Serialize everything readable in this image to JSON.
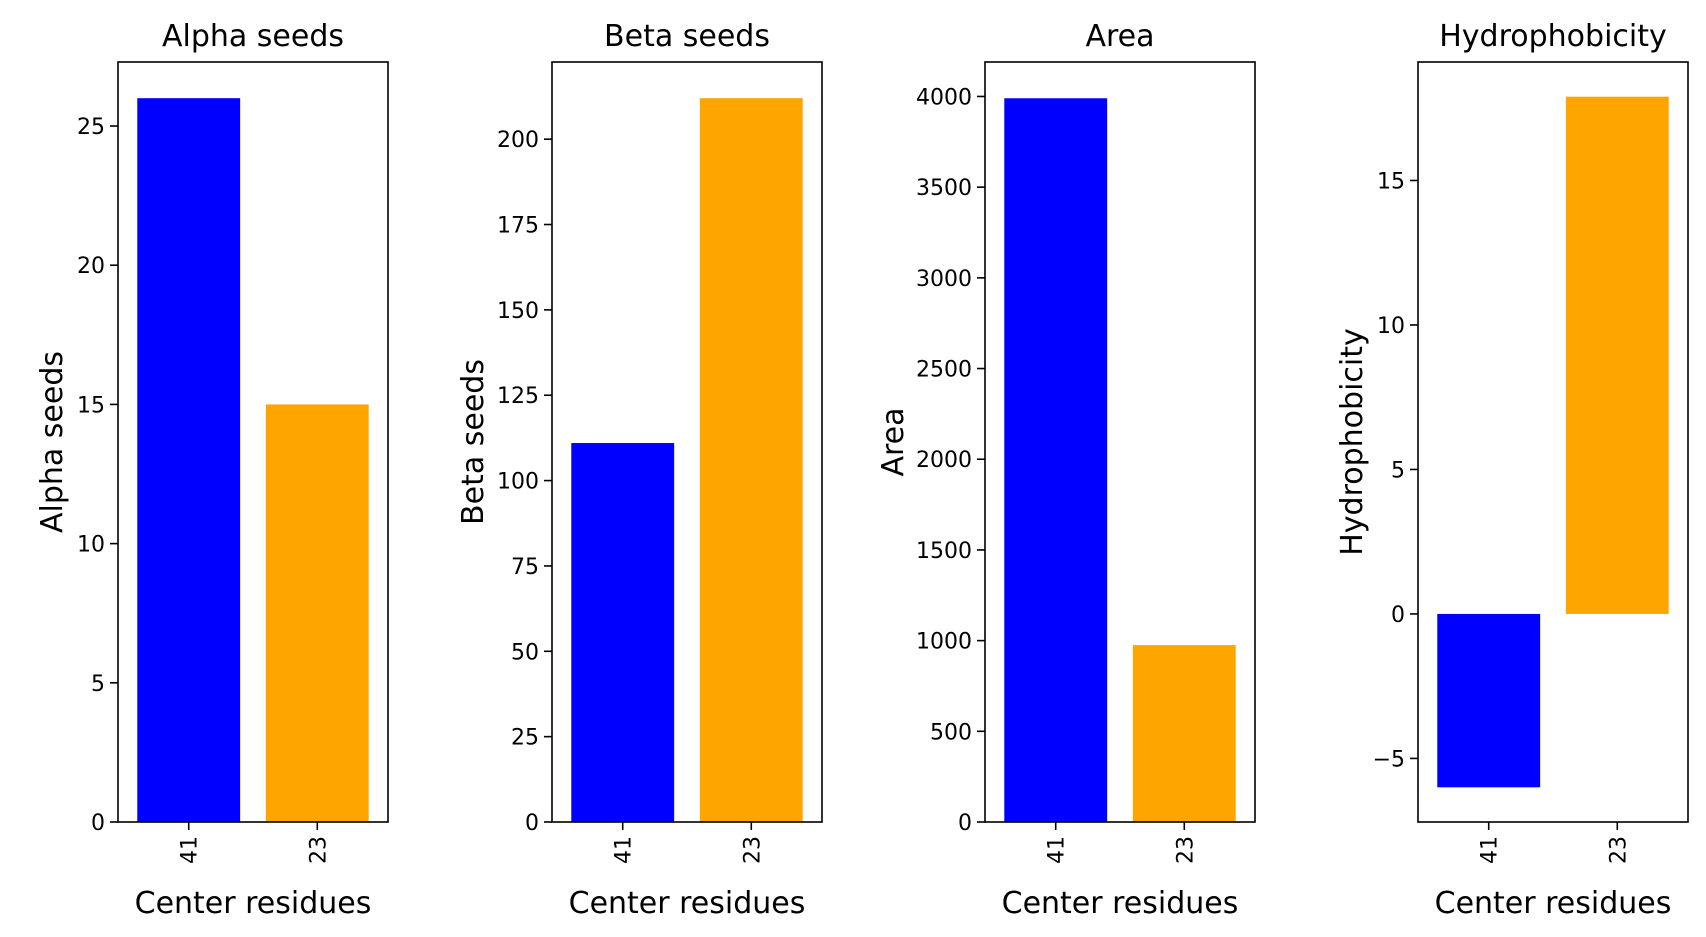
{
  "chart_data": [
    {
      "type": "bar",
      "title": "Alpha seeds",
      "xlabel": "Center residues",
      "ylabel": "Alpha seeds",
      "categories": [
        "41",
        "23"
      ],
      "values": [
        26,
        15
      ],
      "colors": [
        "#0000ff",
        "#ffa500"
      ],
      "ylim": [
        0,
        27.3
      ],
      "yticks": [
        0,
        5,
        10,
        15,
        20,
        25
      ],
      "ytick_labels": [
        "0",
        "5",
        "10",
        "15",
        "20",
        "25"
      ]
    },
    {
      "type": "bar",
      "title": "Beta seeds",
      "xlabel": "Center residues",
      "ylabel": "Beta seeds",
      "categories": [
        "41",
        "23"
      ],
      "values": [
        111,
        212
      ],
      "colors": [
        "#0000ff",
        "#ffa500"
      ],
      "ylim": [
        0,
        222.6
      ],
      "yticks": [
        0,
        25,
        50,
        75,
        100,
        125,
        150,
        175,
        200
      ],
      "ytick_labels": [
        "0",
        "25",
        "50",
        "75",
        "100",
        "125",
        "150",
        "175",
        "200"
      ]
    },
    {
      "type": "bar",
      "title": "Area",
      "xlabel": "Center residues",
      "ylabel": "Area",
      "categories": [
        "41",
        "23"
      ],
      "values": [
        3990,
        975
      ],
      "colors": [
        "#0000ff",
        "#ffa500"
      ],
      "ylim": [
        0,
        4190
      ],
      "yticks": [
        0,
        500,
        1000,
        1500,
        2000,
        2500,
        3000,
        3500,
        4000
      ],
      "ytick_labels": [
        "0",
        "500",
        "1000",
        "1500",
        "2000",
        "2500",
        "3000",
        "3500",
        "4000"
      ]
    },
    {
      "type": "bar",
      "title": "Hydrophobicity",
      "xlabel": "Center residues",
      "ylabel": "Hydrophobicity",
      "categories": [
        "41",
        "23"
      ],
      "values": [
        -6,
        17.9
      ],
      "colors": [
        "#0000ff",
        "#ffa500"
      ],
      "ylim": [
        -7.2,
        19.1
      ],
      "yticks": [
        -5,
        0,
        5,
        10,
        15
      ],
      "ytick_labels": [
        "−5",
        "0",
        "5",
        "10",
        "15"
      ]
    }
  ]
}
